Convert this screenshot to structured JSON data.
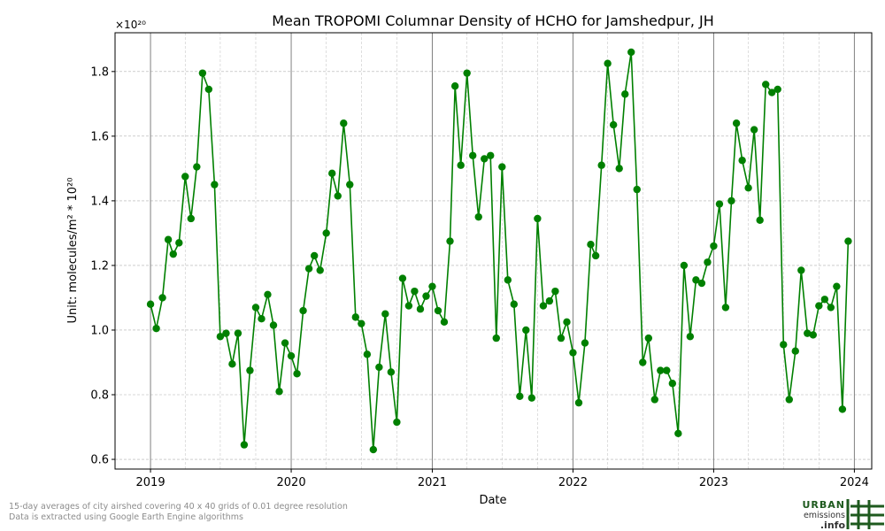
{
  "chart_data": {
    "type": "line",
    "title": "Mean TROPOMI Columnar Density of HCHO for Jamshedpur, JH",
    "xlabel": "Date",
    "ylabel": "Unit: molecules/m² * 10²⁰",
    "scale_label": "×10²⁰",
    "xlim": [
      "2018-10-01",
      "2024-02-15"
    ],
    "ylim": [
      0.57,
      1.92
    ],
    "x_ticks": [
      "2019-01-01",
      "2020-01-01",
      "2021-01-01",
      "2022-01-01",
      "2023-01-01",
      "2024-01-01"
    ],
    "x_tick_labels": [
      "2019",
      "2020",
      "2021",
      "2022",
      "2023",
      "2024"
    ],
    "y_ticks": [
      0.6,
      0.8,
      1.0,
      1.2,
      1.4,
      1.6,
      1.8
    ],
    "y_tick_labels": [
      "0.6",
      "0.8",
      "1.0",
      "1.2",
      "1.4",
      "1.6",
      "1.8"
    ],
    "grid": true,
    "series_color": "#008000",
    "x": [
      "2019-01-01",
      "2019-01-16",
      "2019-02-01",
      "2019-02-16",
      "2019-03-01",
      "2019-03-16",
      "2019-04-01",
      "2019-04-16",
      "2019-05-01",
      "2019-05-16",
      "2019-06-01",
      "2019-06-16",
      "2019-07-01",
      "2019-07-16",
      "2019-08-01",
      "2019-08-16",
      "2019-09-01",
      "2019-09-16",
      "2019-10-01",
      "2019-10-16",
      "2019-11-01",
      "2019-11-16",
      "2019-12-01",
      "2019-12-16",
      "2020-01-01",
      "2020-01-16",
      "2020-02-01",
      "2020-02-16",
      "2020-03-01",
      "2020-03-16",
      "2020-04-01",
      "2020-04-16",
      "2020-05-01",
      "2020-05-16",
      "2020-06-01",
      "2020-06-16",
      "2020-07-01",
      "2020-07-16",
      "2020-08-01",
      "2020-08-16",
      "2020-09-01",
      "2020-09-16",
      "2020-10-01",
      "2020-10-16",
      "2020-11-01",
      "2020-11-16",
      "2020-12-01",
      "2020-12-16",
      "2021-01-01",
      "2021-01-16",
      "2021-02-01",
      "2021-02-16",
      "2021-03-01",
      "2021-03-16",
      "2021-04-01",
      "2021-04-16",
      "2021-05-01",
      "2021-05-16",
      "2021-06-01",
      "2021-06-16",
      "2021-07-01",
      "2021-07-16",
      "2021-08-01",
      "2021-08-16",
      "2021-09-01",
      "2021-09-16",
      "2021-10-01",
      "2021-10-16",
      "2021-11-01",
      "2021-11-16",
      "2021-12-01",
      "2021-12-16",
      "2022-01-01",
      "2022-01-16",
      "2022-02-01",
      "2022-02-16",
      "2022-03-01",
      "2022-03-16",
      "2022-04-01",
      "2022-04-16",
      "2022-05-01",
      "2022-05-16",
      "2022-06-01",
      "2022-06-16",
      "2022-07-01",
      "2022-07-16",
      "2022-08-01",
      "2022-08-16",
      "2022-09-01",
      "2022-09-16",
      "2022-10-01",
      "2022-10-16",
      "2022-11-01",
      "2022-11-16",
      "2022-12-01",
      "2022-12-16",
      "2023-01-01",
      "2023-01-16",
      "2023-02-01",
      "2023-02-16",
      "2023-03-01",
      "2023-03-16",
      "2023-04-01",
      "2023-04-16",
      "2023-05-01",
      "2023-05-16",
      "2023-06-01",
      "2023-06-16",
      "2023-07-01",
      "2023-07-16",
      "2023-08-01",
      "2023-08-16",
      "2023-09-01",
      "2023-09-16",
      "2023-10-01",
      "2023-10-16",
      "2023-11-01",
      "2023-11-16",
      "2023-12-01",
      "2023-12-16"
    ],
    "values": [
      1.08,
      1.005,
      1.1,
      1.28,
      1.235,
      1.27,
      1.475,
      1.345,
      1.505,
      1.795,
      1.745,
      1.45,
      0.98,
      0.99,
      0.895,
      0.99,
      0.645,
      0.875,
      1.07,
      1.035,
      1.11,
      1.015,
      0.81,
      0.96,
      0.92,
      0.865,
      1.06,
      1.19,
      1.23,
      1.185,
      1.3,
      1.485,
      1.415,
      1.64,
      1.45,
      1.04,
      1.02,
      0.925,
      0.63,
      0.885,
      1.05,
      0.87,
      0.715,
      1.16,
      1.075,
      1.12,
      1.065,
      1.105,
      1.135,
      1.06,
      1.025,
      1.275,
      1.755,
      1.51,
      1.795,
      1.54,
      1.35,
      1.53,
      1.54,
      0.975,
      1.505,
      1.155,
      1.08,
      0.795,
      1.0,
      0.79,
      1.345,
      1.075,
      1.09,
      1.12,
      0.975,
      1.025,
      0.93,
      0.775,
      0.96,
      1.265,
      1.23,
      1.51,
      1.825,
      1.635,
      1.5,
      1.73,
      1.86,
      1.435,
      0.9,
      0.975,
      0.785,
      0.875,
      0.875,
      0.835,
      0.68,
      1.2,
      0.98,
      1.155,
      1.145,
      1.21,
      1.26,
      1.39,
      1.07,
      1.4,
      1.64,
      1.525,
      1.44,
      1.62,
      1.34,
      1.76,
      1.735,
      1.745,
      0.955,
      0.785,
      0.935,
      1.185,
      0.99,
      0.985,
      1.075,
      1.095,
      1.07,
      1.135,
      0.755,
      1.275
    ]
  },
  "footnotes": {
    "line1": "15-day averages of city airshed covering 40 x 40 grids of 0.01 degree resolution",
    "line2": "Data is extracted using Google Earth Engine algorithms"
  },
  "logo": {
    "line1": "URBAN",
    "line2": "emissions",
    "line3": ".info",
    "brand_color": "#1e5a1e",
    "text_color": "#333333"
  }
}
